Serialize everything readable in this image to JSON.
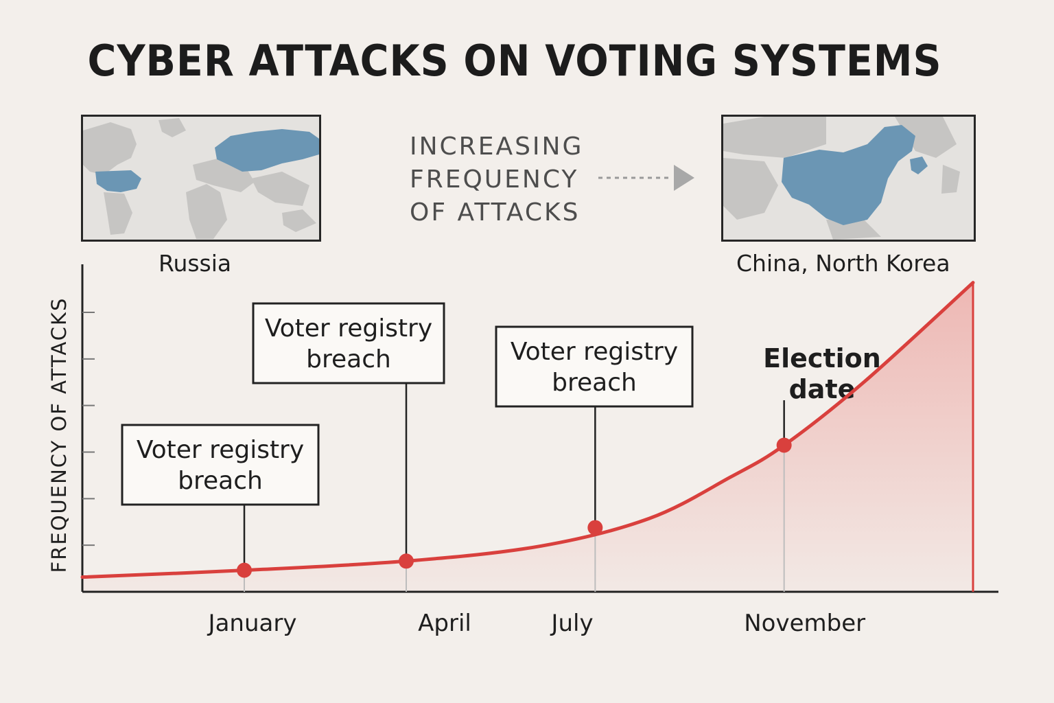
{
  "title": "CYBER ATTACKS ON VOTING SYSTEMS",
  "maps": {
    "left": {
      "caption": "Russia",
      "highlight_color": "#6b96b4"
    },
    "right": {
      "caption": "China, North Korea",
      "highlight_color": "#6b96b4"
    }
  },
  "trend_text": {
    "line1": "INCREASING",
    "line2": "FREQUENCY",
    "line3": "OF ATTACKS"
  },
  "chart_data": {
    "type": "area",
    "title": "CYBER ATTACKS ON VOTING SYSTEMS",
    "xlabel": "",
    "ylabel": "FREQUENCY OF ATTACKS",
    "x_ticks": [
      {
        "label": "January",
        "x": 1.0
      },
      {
        "label": "April",
        "x": 4.0
      },
      {
        "label": "July",
        "x": 7.0
      },
      {
        "label": "November",
        "x": 11.0
      }
    ],
    "xlim": [
      -2.0,
      14.5
    ],
    "ylim": [
      0,
      7
    ],
    "y_tick_count": 6,
    "grid": false,
    "line_color": "#d9403d",
    "fill_color": "#e98a86",
    "curve": [
      {
        "x": -2.0,
        "y": 0.32
      },
      {
        "x": 1.0,
        "y": 0.47
      },
      {
        "x": 4.0,
        "y": 0.67
      },
      {
        "x": 6.5,
        "y": 1.0
      },
      {
        "x": 8.5,
        "y": 1.6
      },
      {
        "x": 10.0,
        "y": 2.5
      },
      {
        "x": 11.0,
        "y": 3.2
      },
      {
        "x": 12.5,
        "y": 4.6
      },
      {
        "x": 14.5,
        "y": 6.75
      }
    ],
    "events": [
      {
        "x": 1.0,
        "y": 0.47,
        "label_line1": "Voter registry",
        "label_line2": "breach",
        "bold": false
      },
      {
        "x": 4.0,
        "y": 0.67,
        "label_line1": "Voter registry",
        "label_line2": "breach",
        "bold": false
      },
      {
        "x": 7.5,
        "y": 1.4,
        "label_line1": "Voter registry",
        "label_line2": "breach",
        "bold": false
      },
      {
        "x": 11.0,
        "y": 3.2,
        "label_line1": "Election",
        "label_line2": "date",
        "bold": true
      }
    ]
  }
}
